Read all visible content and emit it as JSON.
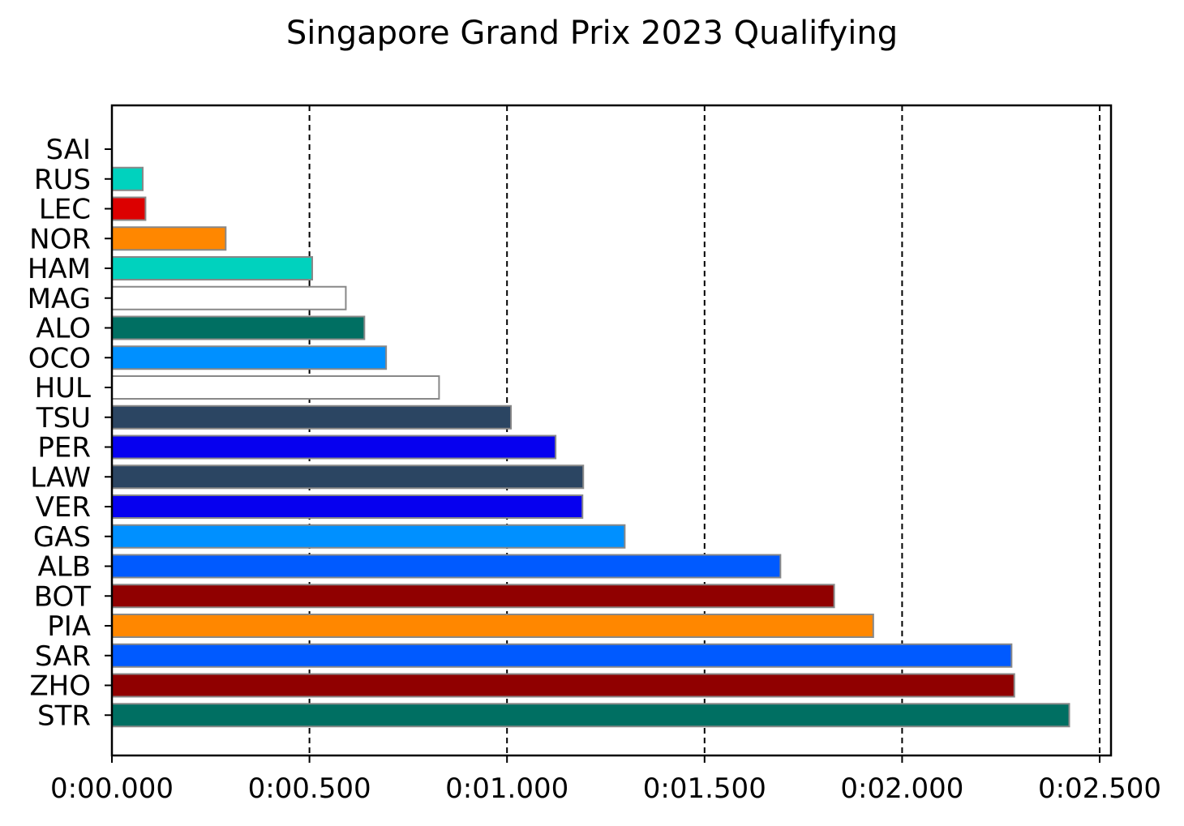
{
  "chart_data": {
    "type": "bar",
    "orientation": "horizontal",
    "title": "Singapore Grand Prix 2023 Qualifying",
    "xlabel": "",
    "ylabel": "",
    "xlim": [
      0,
      2.5
    ],
    "x_ticks": [
      {
        "value": 0.0,
        "label": "0:00.000"
      },
      {
        "value": 0.5,
        "label": "0:00.500"
      },
      {
        "value": 1.0,
        "label": "0:01.000"
      },
      {
        "value": 1.5,
        "label": "0:01.500"
      },
      {
        "value": 2.0,
        "label": "0:02.000"
      },
      {
        "value": 2.5,
        "label": "0:02.500"
      }
    ],
    "grid": {
      "x": true,
      "style": "dashed",
      "color": "#000000"
    },
    "bars": [
      {
        "driver": "SAI",
        "gap": 0.0,
        "color": "#ed1c24"
      },
      {
        "driver": "RUS",
        "gap": 0.078,
        "color": "#00d2be"
      },
      {
        "driver": "LEC",
        "gap": 0.085,
        "color": "#dc0000"
      },
      {
        "driver": "NOR",
        "gap": 0.288,
        "color": "#ff8700"
      },
      {
        "driver": "HAM",
        "gap": 0.507,
        "color": "#00d2be"
      },
      {
        "driver": "MAG",
        "gap": 0.592,
        "color": "#ffffff"
      },
      {
        "driver": "ALO",
        "gap": 0.639,
        "color": "#006f62"
      },
      {
        "driver": "OCO",
        "gap": 0.694,
        "color": "#0090ff"
      },
      {
        "driver": "HUL",
        "gap": 0.828,
        "color": "#ffffff"
      },
      {
        "driver": "TSU",
        "gap": 1.01,
        "color": "#2b4562"
      },
      {
        "driver": "PER",
        "gap": 1.123,
        "color": "#0600ef"
      },
      {
        "driver": "LAW",
        "gap": 1.193,
        "color": "#2b4562"
      },
      {
        "driver": "VER",
        "gap": 1.191,
        "color": "#0600ef"
      },
      {
        "driver": "GAS",
        "gap": 1.298,
        "color": "#0090ff"
      },
      {
        "driver": "ALB",
        "gap": 1.692,
        "color": "#005aff"
      },
      {
        "driver": "BOT",
        "gap": 1.828,
        "color": "#900000"
      },
      {
        "driver": "PIA",
        "gap": 1.927,
        "color": "#ff8700"
      },
      {
        "driver": "SAR",
        "gap": 2.277,
        "color": "#005aff"
      },
      {
        "driver": "ZHO",
        "gap": 2.284,
        "color": "#900000"
      },
      {
        "driver": "STR",
        "gap": 2.423,
        "color": "#006f62"
      }
    ]
  }
}
